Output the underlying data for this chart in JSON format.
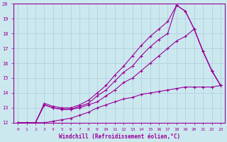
{
  "background_color": "#cce8ef",
  "line_color": "#990099",
  "grid_color": "#aaccdd",
  "xlabel": "Windchill (Refroidissement éolien,°C)",
  "xlim": [
    -0.5,
    23.5
  ],
  "ylim": [
    12,
    20
  ],
  "yticks": [
    12,
    13,
    14,
    15,
    16,
    17,
    18,
    19,
    20
  ],
  "xticks": [
    0,
    1,
    2,
    3,
    4,
    5,
    6,
    7,
    8,
    9,
    10,
    11,
    12,
    13,
    14,
    15,
    16,
    17,
    18,
    19,
    20,
    21,
    22,
    23
  ],
  "lines": [
    {
      "x": [
        0,
        1,
        2,
        3,
        4,
        5,
        6,
        7,
        8,
        9,
        10,
        11,
        12,
        13,
        14,
        15,
        16,
        17,
        18,
        19,
        20,
        21,
        22,
        23
      ],
      "y": [
        12,
        12,
        12,
        12,
        12.1,
        12.2,
        12.3,
        12.5,
        12.7,
        13.0,
        13.2,
        13.4,
        13.6,
        13.7,
        13.9,
        14.0,
        14.1,
        14.2,
        14.3,
        14.4,
        14.4,
        14.4,
        14.4,
        14.5
      ]
    },
    {
      "x": [
        0,
        1,
        2,
        3,
        4,
        5,
        6,
        7,
        8,
        9,
        10,
        11,
        12,
        13,
        14,
        15,
        16,
        17,
        18,
        19,
        20,
        21,
        22,
        23
      ],
      "y": [
        12,
        12,
        12,
        13.2,
        13.0,
        12.9,
        12.9,
        13.0,
        13.2,
        13.4,
        13.8,
        14.2,
        14.7,
        15.0,
        15.5,
        16.0,
        16.5,
        17.0,
        17.5,
        17.8,
        18.3,
        16.8,
        15.5,
        14.5
      ]
    },
    {
      "x": [
        0,
        1,
        2,
        3,
        4,
        5,
        6,
        7,
        8,
        9,
        10,
        11,
        12,
        13,
        14,
        15,
        16,
        17,
        18,
        19,
        20,
        21,
        22,
        23
      ],
      "y": [
        12,
        12,
        12,
        13.2,
        13.0,
        12.9,
        12.9,
        13.1,
        13.3,
        13.8,
        14.2,
        14.8,
        15.4,
        15.8,
        16.5,
        17.1,
        17.6,
        18.0,
        19.9,
        19.5,
        18.3,
        16.8,
        15.5,
        14.5
      ]
    },
    {
      "x": [
        0,
        1,
        2,
        3,
        4,
        5,
        6,
        7,
        8,
        9,
        10,
        11,
        12,
        13,
        14,
        15,
        16,
        17,
        18,
        19,
        20,
        21,
        22,
        23
      ],
      "y": [
        12,
        12,
        12,
        13.3,
        13.1,
        13.0,
        13.0,
        13.2,
        13.5,
        14.0,
        14.5,
        15.2,
        15.8,
        16.5,
        17.2,
        17.8,
        18.3,
        18.8,
        19.9,
        19.5,
        18.3,
        16.8,
        15.5,
        14.5
      ]
    }
  ]
}
